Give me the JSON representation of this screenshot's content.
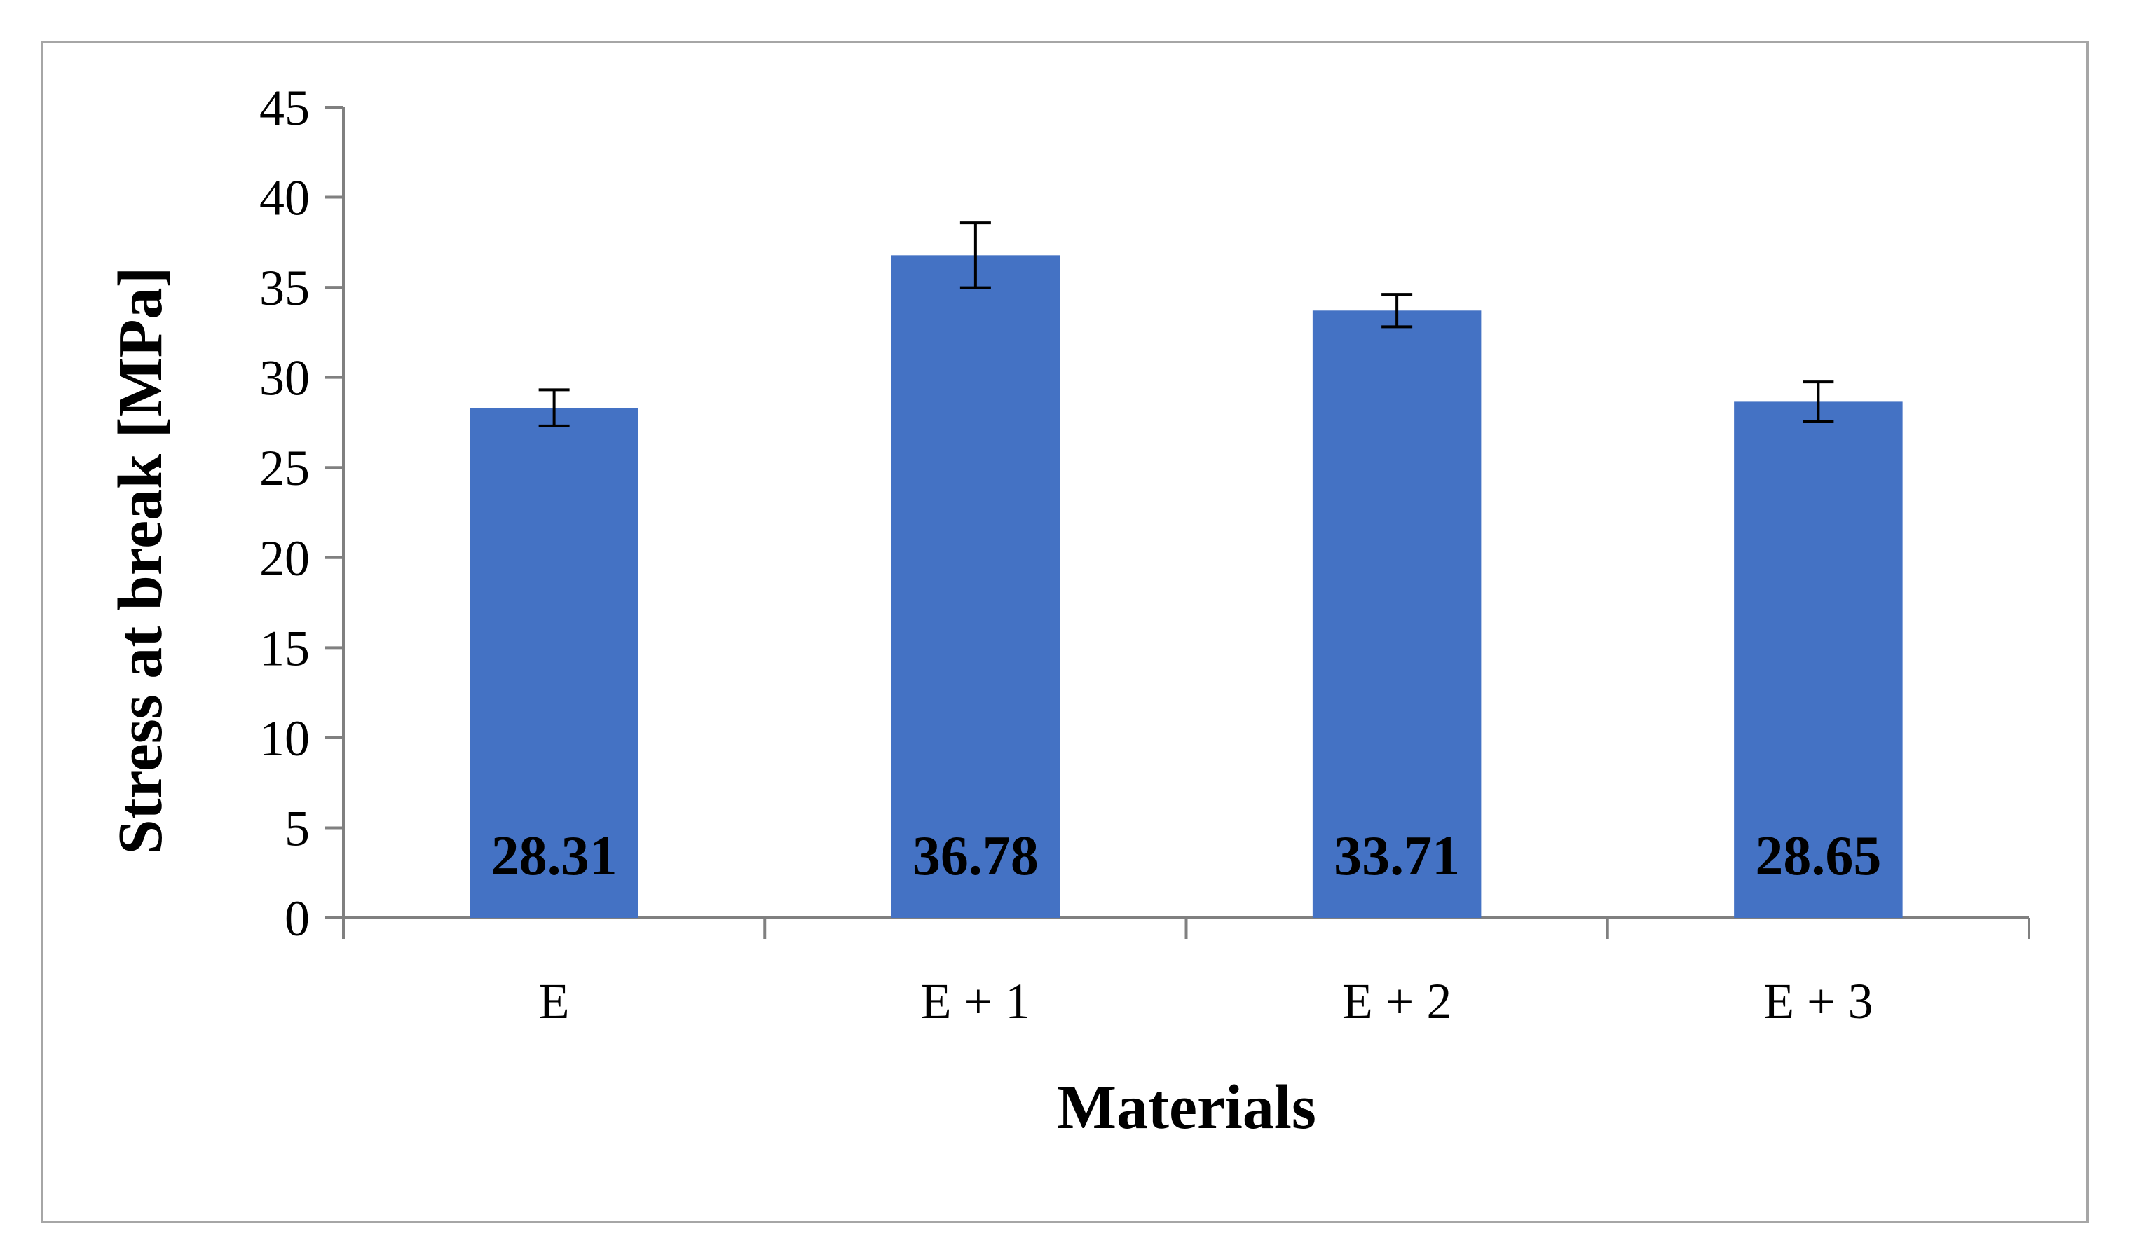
{
  "chart_data": {
    "type": "bar",
    "title": "",
    "xlabel": "Materials",
    "ylabel": "Stress at break [MPa]",
    "ylim": [
      0,
      45
    ],
    "ytick_step": 5,
    "yticks": [
      "0",
      "5",
      "10",
      "15",
      "20",
      "25",
      "30",
      "35",
      "40",
      "45"
    ],
    "categories": [
      "E",
      "E + 1",
      "E + 2",
      "E + 3"
    ],
    "values": [
      28.31,
      36.78,
      33.71,
      28.65
    ],
    "data_labels": [
      "28.31",
      "36.78",
      "33.71",
      "28.65"
    ],
    "error_bars": [
      1.0,
      1.8,
      0.9,
      1.1
    ],
    "grid": false,
    "legend": "none",
    "bar_color": "#4472c4",
    "axis_color": "#808080",
    "frame_color": "#a6a6a6"
  }
}
